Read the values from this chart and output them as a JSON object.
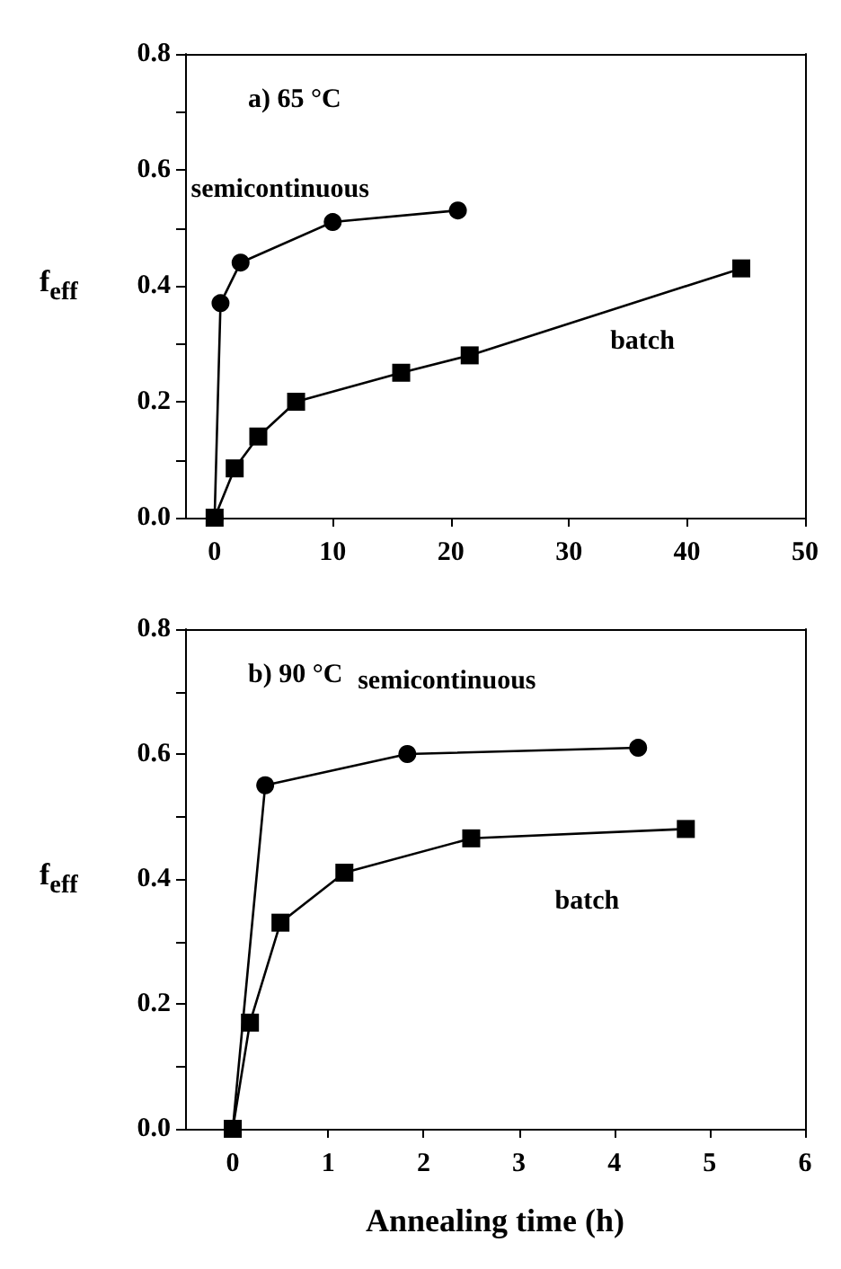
{
  "chart_data": [
    {
      "type": "line",
      "ylabel": "f$_{eff}$",
      "annotations": [
        "a) 65 °C"
      ],
      "xlim": [
        -2.5,
        50
      ],
      "xticks": [
        0,
        10,
        20,
        30,
        40,
        50
      ],
      "ylim": [
        0,
        0.8
      ],
      "yticks": [
        {
          "value": 0,
          "label": "0.0"
        },
        {
          "value": 0.1,
          "label": null
        },
        {
          "value": 0.2,
          "label": "0.2"
        },
        {
          "value": 0.3,
          "label": null
        },
        {
          "value": 0.4,
          "label": "0.4"
        },
        {
          "value": 0.5,
          "label": null
        },
        {
          "value": 0.6,
          "label": "0.6"
        },
        {
          "value": 0.7,
          "label": null
        },
        {
          "value": 0.8,
          "label": "0.8"
        }
      ],
      "grid": false,
      "legend": false,
      "series": [
        {
          "name": "semicontinuous",
          "color": "#000000",
          "marker": "circle",
          "x": [
            0,
            0.5,
            2.2,
            10,
            20.6
          ],
          "values": [
            0,
            0.37,
            0.44,
            0.51,
            0.53
          ]
        },
        {
          "name": "batch",
          "color": "#000000",
          "marker": "square",
          "x": [
            0,
            1.7,
            3.7,
            6.9,
            15.8,
            21.6,
            44.6
          ],
          "values": [
            0,
            0.085,
            0.14,
            0.2,
            0.25,
            0.28,
            0.43
          ]
        }
      ]
    },
    {
      "type": "line",
      "xlabel": "Annealing time (h)",
      "ylabel": "f$_{eff}$",
      "annotations": [
        "b) 90 °C"
      ],
      "xlim": [
        -0.5,
        6
      ],
      "xticks": [
        0,
        1,
        2,
        3,
        4,
        5,
        6
      ],
      "ylim": [
        0,
        0.8
      ],
      "yticks": [
        {
          "value": 0,
          "label": "0.0"
        },
        {
          "value": 0.1,
          "label": null
        },
        {
          "value": 0.2,
          "label": "0.2"
        },
        {
          "value": 0.3,
          "label": null
        },
        {
          "value": 0.4,
          "label": "0.4"
        },
        {
          "value": 0.5,
          "label": null
        },
        {
          "value": 0.6,
          "label": "0.6"
        },
        {
          "value": 0.7,
          "label": null
        },
        {
          "value": 0.8,
          "label": "0.8"
        }
      ],
      "grid": false,
      "legend": false,
      "series": [
        {
          "name": "semicontinuous",
          "color": "#000000",
          "marker": "circle",
          "x": [
            0,
            0.34,
            1.83,
            4.25
          ],
          "values": [
            0,
            0.55,
            0.6,
            0.61
          ]
        },
        {
          "name": "batch",
          "color": "#000000",
          "marker": "square",
          "x": [
            0,
            0.18,
            0.5,
            1.17,
            2.5,
            4.75
          ],
          "values": [
            0,
            0.17,
            0.33,
            0.41,
            0.465,
            0.48
          ]
        }
      ]
    }
  ]
}
